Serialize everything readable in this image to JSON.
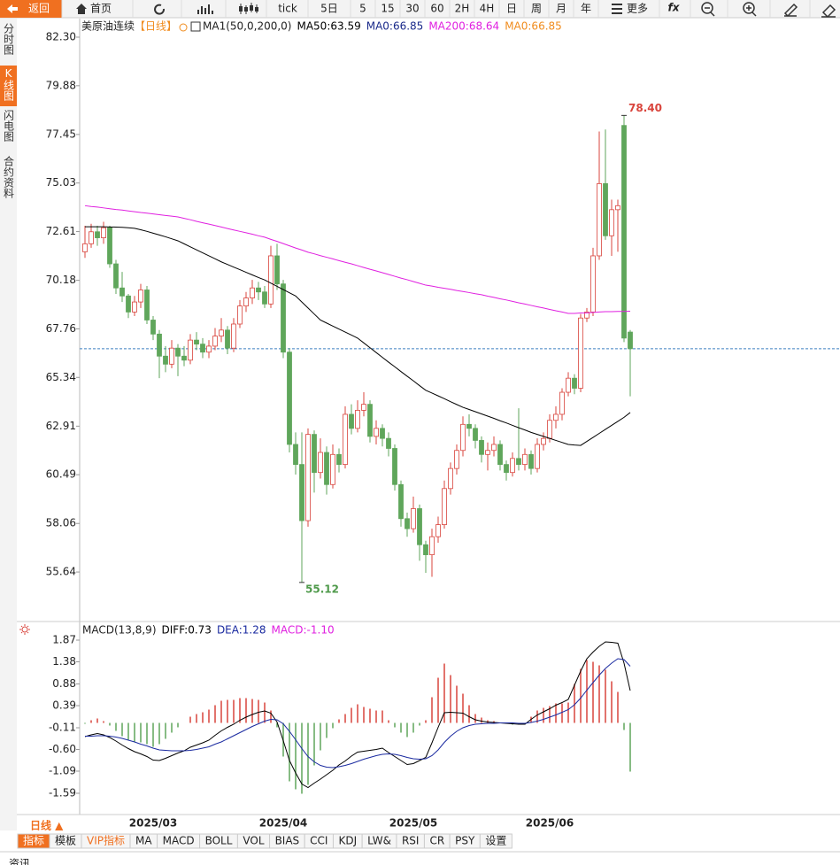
{
  "toolbar": {
    "back": "返回",
    "home": "首页",
    "items": [
      "tick",
      "5日",
      "5",
      "15",
      "30",
      "60",
      "2H",
      "4H",
      "日",
      "周",
      "月",
      "年"
    ],
    "more": "更多",
    "fx": "fx"
  },
  "sidebar": [
    "分时图",
    "K线图",
    "闪电图",
    "合约资料"
  ],
  "chart_data": [
    {
      "type": "candlestick",
      "title": "美原油连续",
      "period": "【日线】",
      "indicator": "MA1(50,0,200,0)",
      "up_color": "#d9443c",
      "down_color": "#5fa65b",
      "ylim": [
        53.26,
        83.27
      ],
      "yticks": [
        {
          "value": 82.3,
          "label": "82.30"
        },
        79.88,
        77.45,
        75.03,
        72.61,
        70.18,
        67.76,
        65.34,
        62.91,
        60.49,
        58.06,
        55.64
      ],
      "price_line": 66.77,
      "high_label": "78.40",
      "low_label": "55.12",
      "series": [
        {
          "name": "MA50:63.59",
          "color": "#000000",
          "values": [
            72.85,
            72.85,
            72.85,
            72.85,
            72.84,
            72.83,
            72.82,
            72.8,
            72.77,
            72.7,
            72.62,
            72.53,
            72.44,
            72.35,
            72.25,
            72.15,
            72.0,
            71.85,
            71.7,
            71.55,
            71.4,
            71.25,
            71.1,
            70.97,
            70.84,
            70.71,
            70.58,
            70.45,
            70.32,
            70.2,
            70.04,
            69.88,
            69.72,
            69.56,
            69.4,
            69.1,
            68.8,
            68.5,
            68.2,
            68.05,
            67.9,
            67.75,
            67.6,
            67.45,
            67.3,
            67.06,
            66.82,
            66.58,
            66.34,
            66.1,
            65.87,
            65.63,
            65.4,
            65.17,
            64.93,
            64.7,
            64.56,
            64.42,
            64.28,
            64.13,
            63.99,
            63.85,
            63.74,
            63.63,
            63.52,
            63.41,
            63.3,
            63.18,
            63.07,
            62.95,
            62.83,
            62.72,
            62.6,
            62.5,
            62.4,
            62.3,
            62.2,
            62.1,
            62.0,
            61.97,
            61.95,
            62.15,
            62.35,
            62.55,
            62.75,
            62.95,
            63.15,
            63.35,
            63.59
          ]
        },
        {
          "name": "MA0:66.85",
          "color": "#1a2a8a"
        },
        {
          "name": "MA200:68.64",
          "color": "#e020e0",
          "values": [
            73.9,
            73.86,
            73.83,
            73.79,
            73.75,
            73.71,
            73.68,
            73.64,
            73.6,
            73.56,
            73.53,
            73.49,
            73.45,
            73.41,
            73.38,
            73.34,
            73.27,
            73.2,
            73.12,
            73.05,
            72.98,
            72.91,
            72.84,
            72.76,
            72.69,
            72.62,
            72.55,
            72.48,
            72.4,
            72.33,
            72.22,
            72.12,
            72.01,
            71.9,
            71.79,
            71.69,
            71.58,
            71.5,
            71.41,
            71.33,
            71.25,
            71.16,
            71.08,
            71.0,
            70.91,
            70.82,
            70.73,
            70.65,
            70.56,
            70.47,
            70.38,
            70.29,
            70.21,
            70.12,
            70.03,
            69.94,
            69.89,
            69.83,
            69.78,
            69.73,
            69.67,
            69.62,
            69.57,
            69.51,
            69.46,
            69.39,
            69.33,
            69.26,
            69.2,
            69.13,
            69.06,
            69.0,
            68.93,
            68.86,
            68.8,
            68.73,
            68.66,
            68.6,
            68.53,
            68.53,
            68.55,
            68.56,
            68.58,
            68.6,
            68.62,
            68.62,
            68.63,
            68.63,
            68.64
          ]
        },
        {
          "name": "MA0:66.85",
          "color": "#f08c1e"
        }
      ],
      "ohlc": [
        [
          71.6,
          72.9,
          71.3,
          72.0
        ],
        [
          72.0,
          73.0,
          71.8,
          72.6
        ],
        [
          72.6,
          72.9,
          71.9,
          72.3
        ],
        [
          72.3,
          73.1,
          72.0,
          72.8
        ],
        [
          72.8,
          72.9,
          70.8,
          71.0
        ],
        [
          71.0,
          71.2,
          69.5,
          69.8
        ],
        [
          69.8,
          70.6,
          69.1,
          69.4
        ],
        [
          69.4,
          69.5,
          68.3,
          68.6
        ],
        [
          68.6,
          69.4,
          68.4,
          69.1
        ],
        [
          69.1,
          70.0,
          68.8,
          69.7
        ],
        [
          69.7,
          69.9,
          68.0,
          68.2
        ],
        [
          68.2,
          68.4,
          67.2,
          67.5
        ],
        [
          67.5,
          67.7,
          65.3,
          66.4
        ],
        [
          66.4,
          66.9,
          65.6,
          66.0
        ],
        [
          66.0,
          67.2,
          65.8,
          66.8
        ],
        [
          66.8,
          67.0,
          65.4,
          66.4
        ],
        [
          66.4,
          66.9,
          65.9,
          66.2
        ],
        [
          66.2,
          67.5,
          66.0,
          67.2
        ],
        [
          67.2,
          67.6,
          66.7,
          67.0
        ],
        [
          67.0,
          67.3,
          66.3,
          66.6
        ],
        [
          66.6,
          67.2,
          66.3,
          66.9
        ],
        [
          66.9,
          67.8,
          66.7,
          67.4
        ],
        [
          67.4,
          68.3,
          67.1,
          67.7
        ],
        [
          67.7,
          67.9,
          66.5,
          66.8
        ],
        [
          66.8,
          68.3,
          66.6,
          68.0
        ],
        [
          68.0,
          69.2,
          67.8,
          68.9
        ],
        [
          68.9,
          69.6,
          68.6,
          69.3
        ],
        [
          69.3,
          70.2,
          69.0,
          69.8
        ],
        [
          69.8,
          70.1,
          69.2,
          69.6
        ],
        [
          69.6,
          69.9,
          68.8,
          69.0
        ],
        [
          69.0,
          71.9,
          68.8,
          71.4
        ],
        [
          71.4,
          72.0,
          69.7,
          70.0
        ],
        [
          70.0,
          70.2,
          66.3,
          66.6
        ],
        [
          66.6,
          66.8,
          61.6,
          62.0
        ],
        [
          62.0,
          62.6,
          60.5,
          61.0
        ],
        [
          61.0,
          62.6,
          55.12,
          58.2
        ],
        [
          58.2,
          62.8,
          57.9,
          62.5
        ],
        [
          62.5,
          62.7,
          59.6,
          60.6
        ],
        [
          60.6,
          62.3,
          60.3,
          61.6
        ],
        [
          61.6,
          61.9,
          59.5,
          60.0
        ],
        [
          60.0,
          62.0,
          59.8,
          61.5
        ],
        [
          61.5,
          61.8,
          60.6,
          61.0
        ],
        [
          61.0,
          63.9,
          60.8,
          63.5
        ],
        [
          63.5,
          64.0,
          62.5,
          62.8
        ],
        [
          62.8,
          64.2,
          62.6,
          63.7
        ],
        [
          63.7,
          64.6,
          63.4,
          64.0
        ],
        [
          64.0,
          64.2,
          62.1,
          62.4
        ],
        [
          62.4,
          63.2,
          62.0,
          62.8
        ],
        [
          62.8,
          63.0,
          61.9,
          62.3
        ],
        [
          62.3,
          62.6,
          61.4,
          61.8
        ],
        [
          61.8,
          62.0,
          59.7,
          60.0
        ],
        [
          60.0,
          60.2,
          57.9,
          58.3
        ],
        [
          58.3,
          58.6,
          57.4,
          57.8
        ],
        [
          57.8,
          59.4,
          57.6,
          58.8
        ],
        [
          58.8,
          59.0,
          56.2,
          57.0
        ],
        [
          57.0,
          57.2,
          55.6,
          56.5
        ],
        [
          56.5,
          57.8,
          55.4,
          57.4
        ],
        [
          57.4,
          58.4,
          57.1,
          58.0
        ],
        [
          58.0,
          60.2,
          57.8,
          59.8
        ],
        [
          59.8,
          61.1,
          59.5,
          60.8
        ],
        [
          60.8,
          62.0,
          60.5,
          61.7
        ],
        [
          61.7,
          63.4,
          61.4,
          63.0
        ],
        [
          63.0,
          63.5,
          62.4,
          62.8
        ],
        [
          62.8,
          63.0,
          61.8,
          62.2
        ],
        [
          62.2,
          62.4,
          61.1,
          61.5
        ],
        [
          61.5,
          62.1,
          60.7,
          61.7
        ],
        [
          61.7,
          62.4,
          61.4,
          62.0
        ],
        [
          62.0,
          62.2,
          60.7,
          61.0
        ],
        [
          61.0,
          61.2,
          60.2,
          60.6
        ],
        [
          60.6,
          61.6,
          60.4,
          61.3
        ],
        [
          61.3,
          63.8,
          60.7,
          61.0
        ],
        [
          61.0,
          61.8,
          60.7,
          61.5
        ],
        [
          61.5,
          61.7,
          60.5,
          60.8
        ],
        [
          60.8,
          62.3,
          60.6,
          62.0
        ],
        [
          62.0,
          62.6,
          61.7,
          62.3
        ],
        [
          62.3,
          63.5,
          62.1,
          63.2
        ],
        [
          63.2,
          63.9,
          62.8,
          63.5
        ],
        [
          63.5,
          64.8,
          63.2,
          64.6
        ],
        [
          64.6,
          65.6,
          64.4,
          65.3
        ],
        [
          65.3,
          65.5,
          64.5,
          64.8
        ],
        [
          64.8,
          68.5,
          64.6,
          68.3
        ],
        [
          68.3,
          68.8,
          68.1,
          68.6
        ],
        [
          68.6,
          71.8,
          68.4,
          71.4
        ],
        [
          71.4,
          77.6,
          71.2,
          75.0
        ],
        [
          75.0,
          77.7,
          72.2,
          72.4
        ],
        [
          72.4,
          74.2,
          71.4,
          73.7
        ],
        [
          73.7,
          74.2,
          71.6,
          73.9
        ],
        [
          77.9,
          78.4,
          67.1,
          67.3
        ],
        [
          67.6,
          67.7,
          64.4,
          66.77
        ]
      ]
    },
    {
      "type": "macd",
      "title": "MACD(13,8,9)",
      "ylim": [
        -2.07,
        2.23
      ],
      "yticks": [
        1.87,
        1.38,
        0.88,
        0.39,
        -0.11,
        {
          "value": -0.6,
          "label": "-0.60"
        },
        -1.09,
        -1.59
      ],
      "categories": [
        null,
        null,
        null,
        null,
        null,
        null,
        null,
        null,
        null,
        null,
        null,
        "2025/03",
        null,
        null,
        null,
        null,
        null,
        null,
        null,
        null,
        null,
        null,
        null,
        null,
        null,
        null,
        null,
        null,
        null,
        null,
        null,
        null,
        "2025/04",
        null,
        null,
        null,
        null,
        null,
        null,
        null,
        null,
        null,
        null,
        null,
        null,
        null,
        null,
        null,
        null,
        null,
        null,
        null,
        null,
        "2025/05",
        null,
        null,
        null,
        null,
        null,
        null,
        null,
        null,
        null,
        null,
        null,
        null,
        null,
        null,
        null,
        null,
        null,
        null,
        null,
        null,
        null,
        "2025/06",
        null,
        null,
        null,
        null,
        null,
        null,
        null,
        null,
        null,
        null,
        null,
        null,
        null
      ],
      "series": [
        {
          "name": "DIFF:0.73",
          "color": "#000000",
          "values": [
            -0.31,
            -0.27,
            -0.24,
            -0.27,
            -0.33,
            -0.41,
            -0.5,
            -0.58,
            -0.65,
            -0.7,
            -0.76,
            -0.84,
            -0.85,
            -0.8,
            -0.74,
            -0.68,
            -0.63,
            -0.55,
            -0.5,
            -0.45,
            -0.39,
            -0.28,
            -0.18,
            -0.1,
            -0.03,
            0.06,
            0.13,
            0.19,
            0.24,
            0.27,
            0.22,
            0.02,
            -0.4,
            -0.85,
            -1.13,
            -1.38,
            -1.46,
            -1.36,
            -1.27,
            -1.17,
            -1.07,
            -0.95,
            -0.86,
            -0.75,
            -0.66,
            -0.64,
            -0.62,
            -0.6,
            -0.57,
            -0.67,
            -0.76,
            -0.85,
            -0.94,
            -0.92,
            -0.85,
            -0.78,
            -0.45,
            -0.1,
            0.23,
            0.24,
            0.23,
            0.22,
            0.14,
            0.07,
            0.04,
            0.02,
            0.01,
            0.0,
            -0.01,
            -0.02,
            -0.03,
            -0.03,
            0.08,
            0.18,
            0.25,
            0.32,
            0.4,
            0.46,
            0.53,
            0.85,
            1.17,
            1.45,
            1.6,
            1.73,
            1.83,
            1.82,
            1.8,
            1.35,
            0.73
          ]
        },
        {
          "name": "DEA:1.28",
          "color": "#1a2aa0",
          "values": [
            -0.3,
            -0.3,
            -0.29,
            -0.29,
            -0.3,
            -0.32,
            -0.35,
            -0.39,
            -0.43,
            -0.48,
            -0.52,
            -0.57,
            -0.61,
            -0.62,
            -0.63,
            -0.63,
            -0.63,
            -0.62,
            -0.6,
            -0.57,
            -0.54,
            -0.48,
            -0.43,
            -0.36,
            -0.29,
            -0.22,
            -0.15,
            -0.08,
            -0.02,
            0.04,
            0.08,
            0.07,
            -0.02,
            -0.19,
            -0.38,
            -0.58,
            -0.76,
            -0.88,
            -0.96,
            -1.0,
            -1.01,
            -0.99,
            -0.96,
            -0.92,
            -0.87,
            -0.82,
            -0.78,
            -0.74,
            -0.71,
            -0.7,
            -0.71,
            -0.74,
            -0.78,
            -0.81,
            -0.82,
            -0.81,
            -0.74,
            -0.61,
            -0.44,
            -0.3,
            -0.19,
            -0.11,
            -0.06,
            -0.03,
            -0.02,
            -0.01,
            -0.01,
            0.0,
            0.0,
            0.0,
            -0.01,
            -0.01,
            0.01,
            0.04,
            0.08,
            0.13,
            0.18,
            0.24,
            0.3,
            0.41,
            0.56,
            0.74,
            0.91,
            1.08,
            1.23,
            1.35,
            1.45,
            1.43,
            1.28
          ]
        },
        {
          "name": "MACD:-1.10",
          "color": "#e020e0",
          "kind": "histogram",
          "up_color": "#d9443c",
          "down_color": "#5fa65b",
          "values": [
            -0.02,
            0.06,
            0.1,
            0.04,
            -0.06,
            -0.18,
            -0.3,
            -0.38,
            -0.44,
            -0.44,
            -0.48,
            -0.54,
            -0.48,
            -0.36,
            -0.22,
            -0.1,
            0.0,
            0.14,
            0.2,
            0.24,
            0.3,
            0.4,
            0.5,
            0.52,
            0.52,
            0.56,
            0.56,
            0.54,
            0.52,
            0.46,
            0.28,
            -0.1,
            -0.76,
            -1.32,
            -1.5,
            -1.6,
            -1.4,
            -0.96,
            -0.62,
            -0.34,
            -0.12,
            0.08,
            0.2,
            0.34,
            0.42,
            0.36,
            0.32,
            0.28,
            0.28,
            0.06,
            -0.1,
            -0.22,
            -0.32,
            -0.22,
            -0.06,
            0.06,
            0.58,
            1.02,
            1.34,
            1.08,
            0.84,
            0.66,
            0.4,
            0.2,
            0.12,
            0.06,
            0.04,
            0.0,
            -0.02,
            -0.04,
            -0.04,
            -0.04,
            0.14,
            0.28,
            0.34,
            0.38,
            0.44,
            0.44,
            0.46,
            0.88,
            1.22,
            1.42,
            1.38,
            1.3,
            1.2,
            0.94,
            0.7,
            -0.16,
            -1.1
          ]
        }
      ]
    }
  ],
  "bottom": {
    "period": "日线 ▲",
    "tabs": [
      "指标",
      "模板",
      "VIP指标",
      "MA",
      "MACD",
      "BOLL",
      "VOL",
      "BIAS",
      "CCI",
      "KDJ",
      "LW&",
      "RSI",
      "CR",
      "PSY",
      "设置"
    ]
  },
  "footer": "资讯"
}
